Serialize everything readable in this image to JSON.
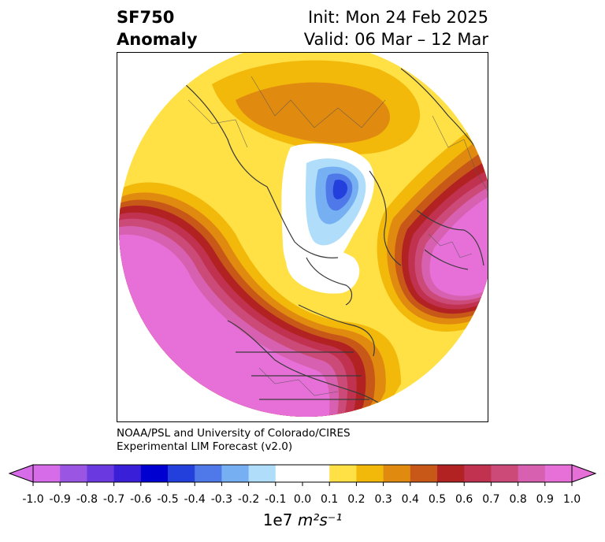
{
  "title": {
    "left_line1": "SF750",
    "left_line2": "Anomaly",
    "right_line1": "Init: Mon 24 Feb 2025",
    "right_line2": "Valid: 06 Mar – 12 Mar"
  },
  "credit": {
    "line1": "NOAA/PSL and University of Colorado/CIRES",
    "line2": "Experimental LIM Forecast (v2.0)"
  },
  "colorbar": {
    "units_prefix": "1e7",
    "units": "m²s⁻¹",
    "ticks": [
      "-1.0",
      "-0.9",
      "-0.8",
      "-0.7",
      "-0.6",
      "-0.5",
      "-0.4",
      "-0.3",
      "-0.2",
      "-0.1",
      "0.0",
      "0.1",
      "0.2",
      "0.3",
      "0.4",
      "0.5",
      "0.6",
      "0.7",
      "0.8",
      "0.9",
      "1.0"
    ],
    "colors": [
      "#d76ce8",
      "#9b55e3",
      "#6a3ae0",
      "#3a1fd8",
      "#0000d0",
      "#2440dc",
      "#4f78e8",
      "#76b0f2",
      "#b0defa",
      "#ffffff",
      "#ffffff",
      "#ffe045",
      "#f2b80a",
      "#e08a10",
      "#c85818",
      "#b22222",
      "#c03250",
      "#cc4a78",
      "#d860b0",
      "#e670d8"
    ],
    "under_color": "#d76ce8",
    "over_color": "#e670d8"
  },
  "map": {
    "projection": "north-polar-stereographic",
    "field": "750 hPa streamfunction anomaly",
    "features": [
      "positive anomaly ring over North Pacific and North America",
      "positive anomaly over Europe and North Atlantic",
      "negative anomaly over Greenland and Arctic"
    ]
  }
}
